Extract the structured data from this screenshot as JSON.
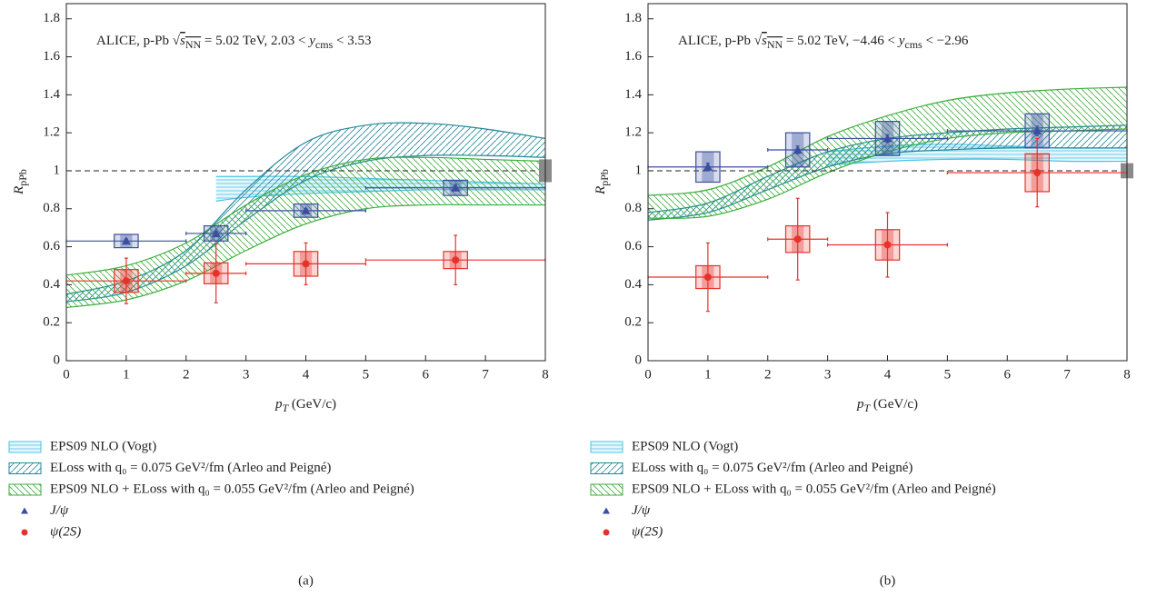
{
  "chart_data": [
    {
      "type": "scatter",
      "label": "(a)",
      "annotation": {
        "prefix": "ALICE, p-Pb ",
        "sqrt": "√",
        "s": "s",
        "s_sub": "NN",
        "mid": " = 5.02 TeV, 2.03 < ",
        "y": "y",
        "y_sub": "cms",
        "suffix": " < 3.53"
      },
      "x_label": {
        "main": "p",
        "sub": "T",
        "unit": " (GeV/c)"
      },
      "y_label": {
        "main": "R",
        "sub": "pPb"
      },
      "xlim": [
        0,
        8
      ],
      "ylim": [
        0,
        1.88
      ],
      "xticks": [
        0,
        1,
        2,
        3,
        4,
        5,
        6,
        7,
        8
      ],
      "yticks": [
        0,
        0.2,
        0.4,
        0.6,
        0.8,
        1,
        1.2,
        1.4,
        1.6,
        1.8
      ],
      "reference_line": 1,
      "norm_uncertainty": {
        "x": 8,
        "value": 1,
        "error": 0.06
      },
      "bands": [
        {
          "name": "EPS09 NLO (Vogt)",
          "color": "#4cc3e6",
          "hatch": "horizontal",
          "x": [
            2.5,
            3,
            4,
            5,
            6,
            7,
            8
          ],
          "lower": [
            0.84,
            0.86,
            0.88,
            0.89,
            0.9,
            0.9,
            0.9
          ],
          "upper": [
            0.97,
            0.97,
            0.97,
            0.96,
            0.95,
            0.94,
            0.93
          ]
        },
        {
          "name": "ELoss with q₀ = 0.075 GeV²/fm (Arleo and Peigné)",
          "color": "#23879a",
          "hatch": "forward",
          "x": [
            0,
            1,
            2,
            3,
            4,
            5,
            6,
            7,
            8
          ],
          "lower": [
            0.31,
            0.36,
            0.5,
            0.74,
            0.95,
            1.05,
            1.08,
            1.08,
            1.07
          ],
          "upper": [
            0.35,
            0.42,
            0.58,
            0.9,
            1.15,
            1.24,
            1.25,
            1.22,
            1.17
          ]
        },
        {
          "name": "EPS09 NLO + ELoss with q₀ = 0.055 GeV²/fm (Arleo and Peigné)",
          "color": "#3cae3c",
          "hatch": "backward",
          "x": [
            0,
            1,
            2,
            3,
            4,
            5,
            6,
            7,
            8
          ],
          "lower": [
            0.28,
            0.32,
            0.42,
            0.58,
            0.72,
            0.8,
            0.82,
            0.82,
            0.82
          ],
          "upper": [
            0.45,
            0.5,
            0.62,
            0.82,
            0.98,
            1.06,
            1.07,
            1.06,
            1.05
          ]
        }
      ],
      "series": [
        {
          "name": "J/ψ",
          "color": "#3a4fa0",
          "marker": "triangle",
          "x": [
            1,
            2.5,
            4,
            6.5
          ],
          "x_low": [
            0,
            2,
            3,
            5
          ],
          "x_high": [
            2,
            3,
            5,
            8
          ],
          "values": [
            0.63,
            0.67,
            0.79,
            0.91
          ],
          "yerr": [
            0.01,
            0.01,
            0.01,
            0.015
          ],
          "ysys": [
            0.035,
            0.04,
            0.035,
            0.04
          ],
          "xsys": 0.2
        },
        {
          "name": "ψ(2S)",
          "color": "#e8312a",
          "marker": "circle",
          "x": [
            1,
            2.5,
            4,
            6.5
          ],
          "x_low": [
            0,
            2,
            3,
            5
          ],
          "x_high": [
            2,
            3,
            5,
            8
          ],
          "values": [
            0.42,
            0.46,
            0.51,
            0.53
          ],
          "yerr": [
            0.12,
            0.155,
            0.11,
            0.13
          ],
          "ysys": [
            0.06,
            0.055,
            0.065,
            0.045
          ],
          "xsys": 0.2
        }
      ]
    },
    {
      "type": "scatter",
      "label": "(b)",
      "annotation": {
        "prefix": "ALICE, p-Pb ",
        "sqrt": "√",
        "s": "s",
        "s_sub": "NN",
        "mid": " = 5.02 TeV, −4.46 < ",
        "y": "y",
        "y_sub": "cms",
        "suffix": " < −2.96"
      },
      "x_label": {
        "main": "p",
        "sub": "T",
        "unit": " (GeV/c)"
      },
      "y_label": {
        "main": "R",
        "sub": "pPb"
      },
      "xlim": [
        0,
        8
      ],
      "ylim": [
        0,
        1.88
      ],
      "xticks": [
        0,
        1,
        2,
        3,
        4,
        5,
        6,
        7,
        8
      ],
      "yticks": [
        0,
        0.2,
        0.4,
        0.6,
        0.8,
        1,
        1.2,
        1.4,
        1.6,
        1.8
      ],
      "reference_line": 1,
      "norm_uncertainty": {
        "x": 8,
        "value": 1,
        "error": 0.04
      },
      "bands": [
        {
          "name": "EPS09 NLO (Vogt)",
          "color": "#4cc3e6",
          "hatch": "horizontal",
          "x": [
            3,
            4,
            5,
            6,
            7,
            8
          ],
          "lower": [
            1.03,
            1.05,
            1.06,
            1.06,
            1.05,
            1.05
          ],
          "upper": [
            1.1,
            1.13,
            1.14,
            1.13,
            1.12,
            1.12
          ]
        },
        {
          "name": "ELoss with q₀ = 0.075 GeV²/fm (Arleo and Peigné)",
          "color": "#23879a",
          "hatch": "forward",
          "x": [
            0,
            1,
            2,
            3,
            4,
            5,
            6,
            7,
            8
          ],
          "lower": [
            0.74,
            0.78,
            0.9,
            1.02,
            1.09,
            1.11,
            1.12,
            1.12,
            1.12
          ],
          "upper": [
            0.78,
            0.83,
            0.97,
            1.1,
            1.17,
            1.2,
            1.22,
            1.23,
            1.24
          ]
        },
        {
          "name": "EPS09 NLO + ELoss with q₀ = 0.055 GeV²/fm (Arleo and Peigné)",
          "color": "#3cae3c",
          "hatch": "backward",
          "x": [
            0,
            1,
            2,
            3,
            4,
            5,
            6,
            7,
            8
          ],
          "lower": [
            0.75,
            0.76,
            0.85,
            0.99,
            1.1,
            1.17,
            1.2,
            1.21,
            1.22
          ],
          "upper": [
            0.87,
            0.9,
            1.02,
            1.18,
            1.29,
            1.37,
            1.41,
            1.43,
            1.44
          ]
        }
      ],
      "series": [
        {
          "name": "J/ψ",
          "color": "#3a4fa0",
          "marker": "triangle",
          "x": [
            1,
            2.5,
            4,
            6.5
          ],
          "x_low": [
            0,
            2,
            3,
            5
          ],
          "x_high": [
            2,
            3,
            5,
            8
          ],
          "values": [
            1.02,
            1.11,
            1.17,
            1.21
          ],
          "yerr": [
            0.02,
            0.02,
            0.02,
            0.025
          ],
          "ysys": [
            0.08,
            0.09,
            0.09,
            0.09
          ],
          "xsys": 0.2
        },
        {
          "name": "ψ(2S)",
          "color": "#e8312a",
          "marker": "circle",
          "x": [
            1,
            2.5,
            4,
            6.5
          ],
          "x_low": [
            0,
            2,
            3,
            5
          ],
          "x_high": [
            2,
            3,
            5,
            8
          ],
          "values": [
            0.44,
            0.64,
            0.61,
            0.99
          ],
          "yerr": [
            0.18,
            0.215,
            0.17,
            0.18
          ],
          "ysys": [
            0.06,
            0.07,
            0.08,
            0.1
          ],
          "xsys": 0.2
        }
      ]
    }
  ]
}
